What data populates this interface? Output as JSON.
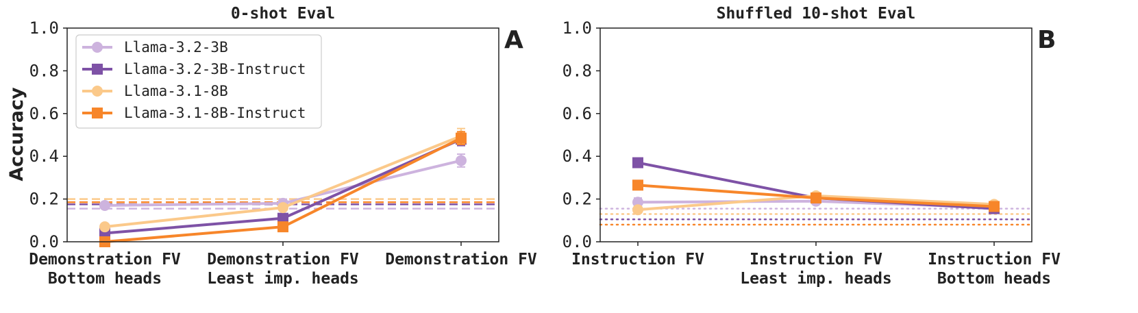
{
  "y_axis_label": "Accuracy",
  "series_styles": [
    {
      "name": "Llama-3.2-3B",
      "color": "#cdb3de",
      "marker": "circle"
    },
    {
      "name": "Llama-3.2-3B-Instruct",
      "color": "#7e52a6",
      "marker": "square"
    },
    {
      "name": "Llama-3.1-8B",
      "color": "#fbc98a",
      "marker": "circle"
    },
    {
      "name": "Llama-3.1-8B-Instruct",
      "color": "#f7862a",
      "marker": "square"
    }
  ],
  "chart_data": [
    {
      "type": "line",
      "panel_label": "A",
      "title": "0-shot Eval",
      "ylabel": "Accuracy",
      "ylim": [
        0,
        1
      ],
      "yticks": [
        "0.0",
        "0.2",
        "0.4",
        "0.6",
        "0.8",
        "1.0"
      ],
      "categories": [
        [
          "Demonstration FV",
          "Bottom heads"
        ],
        [
          "Demonstration FV",
          "Least imp. heads"
        ],
        [
          "Demonstration FV"
        ]
      ],
      "legend": {
        "position": "upper-left",
        "entries": [
          "Llama-3.2-3B",
          "Llama-3.2-3B-Instruct",
          "Llama-3.1-8B",
          "Llama-3.1-8B-Instruct"
        ]
      },
      "baseline_style": "dashed",
      "series": [
        {
          "name": "Llama-3.2-3B",
          "values": [
            0.17,
            0.18,
            0.38
          ],
          "errors": [
            0.015,
            0.02,
            0.03
          ],
          "baseline": 0.155
        },
        {
          "name": "Llama-3.2-3B-Instruct",
          "values": [
            0.04,
            0.11,
            0.48
          ],
          "errors": [
            0.01,
            0.015,
            0.03
          ],
          "baseline": 0.175
        },
        {
          "name": "Llama-3.1-8B",
          "values": [
            0.07,
            0.16,
            0.495
          ],
          "errors": [
            0.01,
            0.015,
            0.035
          ],
          "baseline": 0.2
        },
        {
          "name": "Llama-3.1-8B-Instruct",
          "values": [
            0.0,
            0.07,
            0.485
          ],
          "errors": [
            0.005,
            0.01,
            0.03
          ],
          "baseline": 0.185
        }
      ]
    },
    {
      "type": "line",
      "panel_label": "B",
      "title": "Shuffled 10-shot Eval",
      "ylabel": "",
      "ylim": [
        0,
        1
      ],
      "yticks": [
        "0.0",
        "0.2",
        "0.4",
        "0.6",
        "0.8",
        "1.0"
      ],
      "categories": [
        [
          "Instruction FV"
        ],
        [
          "Instruction FV",
          "Least imp. heads"
        ],
        [
          "Instruction FV",
          "Bottom heads"
        ]
      ],
      "baseline_style": "dotted",
      "series": [
        {
          "name": "Llama-3.2-3B",
          "values": [
            0.185,
            0.19,
            0.16
          ],
          "errors": [
            0.02,
            0.015,
            0.01
          ],
          "baseline": 0.155
        },
        {
          "name": "Llama-3.2-3B-Instruct",
          "values": [
            0.37,
            0.205,
            0.155
          ],
          "errors": [
            0.015,
            0.015,
            0.01
          ],
          "baseline": 0.105
        },
        {
          "name": "Llama-3.1-8B",
          "values": [
            0.15,
            0.215,
            0.175
          ],
          "errors": [
            0.015,
            0.015,
            0.01
          ],
          "baseline": 0.13
        },
        {
          "name": "Llama-3.1-8B-Instruct",
          "values": [
            0.265,
            0.205,
            0.165
          ],
          "errors": [
            0.015,
            0.015,
            0.01
          ],
          "baseline": 0.08
        }
      ]
    }
  ]
}
